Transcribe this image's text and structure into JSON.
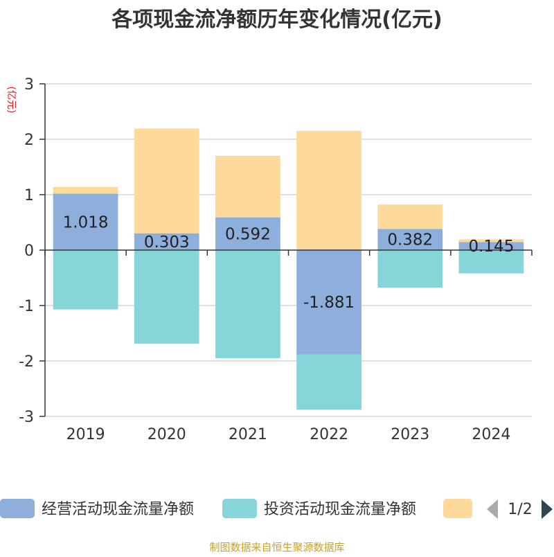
{
  "chart_data": {
    "type": "bar",
    "stacked": true,
    "title": "各项现金流净额历年变化情况(亿元)",
    "ylabel": "(亿元)",
    "categories": [
      "2019",
      "2020",
      "2021",
      "2022",
      "2023",
      "2024"
    ],
    "ylim": [
      -3,
      3
    ],
    "yticks": [
      3,
      2,
      1,
      0,
      -1,
      -2,
      -3
    ],
    "grid": true,
    "series": [
      {
        "name": "经营活动现金流量净额",
        "color": "#8eaedb",
        "values": [
          1.018,
          0.303,
          0.592,
          -1.881,
          0.382,
          0.145
        ],
        "labels": [
          "1.018",
          "0.303",
          "0.592",
          "-1.881",
          "0.382",
          "0.145"
        ]
      },
      {
        "name": "投资活动现金流量净额",
        "color": "#86d5d8",
        "values": [
          -1.07,
          -1.69,
          -1.95,
          -1.0,
          -0.68,
          -0.42
        ]
      },
      {
        "name": "",
        "color": "#fed99c",
        "values": [
          0.12,
          1.89,
          1.11,
          2.15,
          0.44,
          0.05
        ]
      }
    ],
    "legend": {
      "placement": "bottom",
      "page": "1/2"
    }
  },
  "source": "制图数据来自恒生聚源数据库"
}
